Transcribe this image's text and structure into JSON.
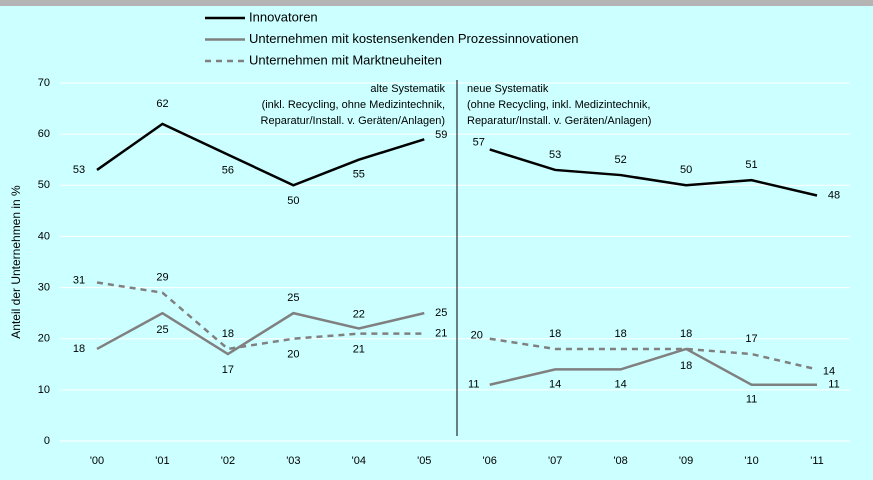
{
  "chart_data": {
    "type": "line",
    "y_label": "Anteil der Unternehmen in %",
    "categories": [
      "'00",
      "'01",
      "'02",
      "'03",
      "'04",
      "'05",
      "'06",
      "'07",
      "'08",
      "'09",
      "'10",
      "'11"
    ],
    "series": [
      {
        "name": "Innovatoren",
        "color": "#000000",
        "dash": false,
        "values": [
          53,
          62,
          56,
          50,
          55,
          59,
          57,
          53,
          52,
          50,
          51,
          48
        ]
      },
      {
        "name": "Unternehmen mit kostensenkenden Prozessinnovationen",
        "color": "#808080",
        "dash": false,
        "values": [
          18,
          25,
          17,
          25,
          22,
          25,
          11,
          14,
          14,
          18,
          11,
          11
        ]
      },
      {
        "name": "Unternehmen mit Marktneuheiten",
        "color": "#808080",
        "dash": true,
        "values": [
          31,
          29,
          18,
          20,
          21,
          21,
          20,
          18,
          18,
          18,
          17,
          14
        ]
      }
    ],
    "annotations": [
      [
        "alte Systematik",
        "(inkl. Recycling, ohne Medizintechnik,",
        "Reparatur/Install. v. Geräten/Anlagen)"
      ],
      [
        "neue Systematik",
        "(ohne Recycling, inkl. Medizintechnik,",
        "Reparatur/Install. v. Geräten/Anlagen)"
      ]
    ],
    "ylim": [
      0,
      70
    ],
    "yticks": [
      0,
      10,
      20,
      30,
      40,
      50,
      60,
      70
    ],
    "grid": true
  }
}
